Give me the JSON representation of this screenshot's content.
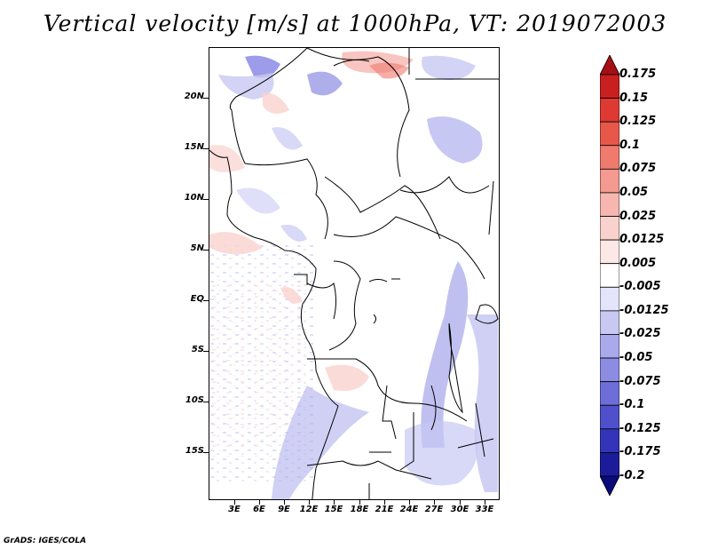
{
  "title": "Vertical velocity [m/s] at 1000hPa, VT: 2019072003",
  "footer": "GrADS: IGES/COLA",
  "map": {
    "lat_labels": [
      "20N",
      "15N",
      "10N",
      "5N",
      "EQ",
      "5S",
      "10S",
      "15S"
    ],
    "lon_labels": [
      "3E",
      "6E",
      "9E",
      "12E",
      "15E",
      "18E",
      "21E",
      "24E",
      "27E",
      "30E",
      "33E"
    ]
  },
  "colorbar": {
    "labels": [
      "0.175",
      "0.15",
      "0.125",
      "0.1",
      "0.075",
      "0.05",
      "0.025",
      "0.0125",
      "0.005",
      "-0.005",
      "-0.0125",
      "-0.025",
      "-0.05",
      "-0.075",
      "-0.1",
      "-0.125",
      "-0.175",
      "-0.2"
    ],
    "colors": [
      "#a50f15",
      "#c8201f",
      "#de3a33",
      "#e8584a",
      "#ef7a6e",
      "#f49a90",
      "#f7b7b0",
      "#fad2cd",
      "#fde8e6",
      "#ffffff",
      "#e4e4fa",
      "#c8c8f3",
      "#a9a9ec",
      "#8c8ce3",
      "#6e6ed8",
      "#5050cc",
      "#3434b8",
      "#1c1c9a",
      "#0a0a7a"
    ]
  }
}
